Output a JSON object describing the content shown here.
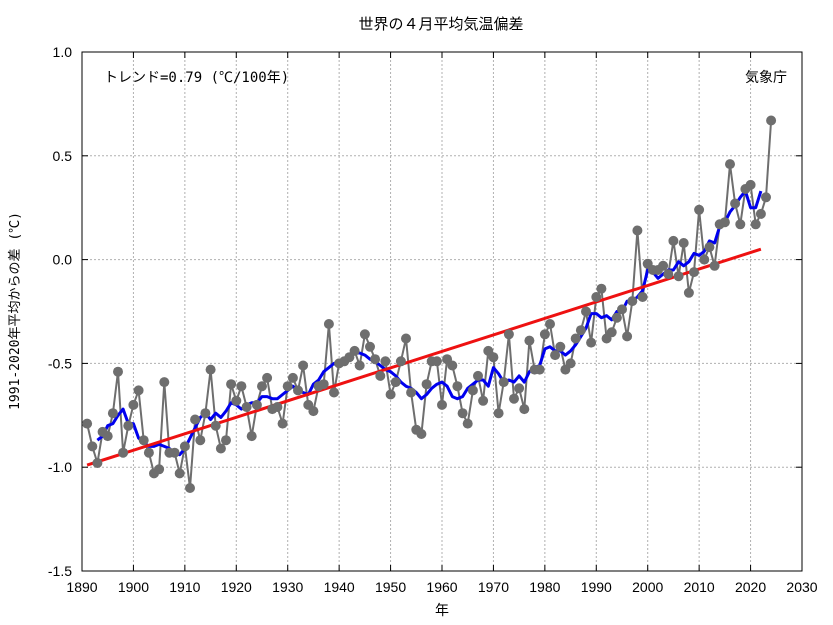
{
  "chart_data": {
    "type": "line",
    "title": "世界の４月平均気温偏差",
    "xlabel": "年",
    "ylabel": "1991-2020年平均からの差 (℃)",
    "trend_label": "トレンド=0.79 (℃/100年)",
    "source_label": "気象庁",
    "xlim": [
      1890,
      2030
    ],
    "ylim": [
      -1.5,
      1.0
    ],
    "x_ticks": [
      "1890",
      "1900",
      "1910",
      "1920",
      "1930",
      "1940",
      "1950",
      "1960",
      "1970",
      "1980",
      "1990",
      "2000",
      "2010",
      "2020",
      "2030"
    ],
    "y_ticks": [
      "1.0",
      "0.5",
      "0.0",
      "-0.5",
      "-1.0",
      "-1.5"
    ],
    "grid": true,
    "colors": {
      "annual": "#6e6e6e",
      "moving_average": "#0000ee",
      "trend": "#ee1111"
    },
    "series": [
      {
        "type": "line+markers",
        "x": [
          1891,
          1892,
          1893,
          1894,
          1895,
          1896,
          1897,
          1898,
          1899,
          1900,
          1901,
          1902,
          1903,
          1904,
          1905,
          1906,
          1907,
          1908,
          1909,
          1910,
          1911,
          1912,
          1913,
          1914,
          1915,
          1916,
          1917,
          1918,
          1919,
          1920,
          1921,
          1922,
          1923,
          1924,
          1925,
          1926,
          1927,
          1928,
          1929,
          1930,
          1931,
          1932,
          1933,
          1934,
          1935,
          1936,
          1937,
          1938,
          1939,
          1940,
          1941,
          1942,
          1943,
          1944,
          1945,
          1946,
          1947,
          1948,
          1949,
          1950,
          1951,
          1952,
          1953,
          1954,
          1955,
          1956,
          1957,
          1958,
          1959,
          1960,
          1961,
          1962,
          1963,
          1964,
          1965,
          1966,
          1967,
          1968,
          1969,
          1970,
          1971,
          1972,
          1973,
          1974,
          1975,
          1976,
          1977,
          1978,
          1979,
          1980,
          1981,
          1982,
          1983,
          1984,
          1985,
          1986,
          1987,
          1988,
          1989,
          1990,
          1991,
          1992,
          1993,
          1994,
          1995,
          1996,
          1997,
          1998,
          1999,
          2000,
          2001,
          2002,
          2003,
          2004,
          2005,
          2006,
          2007,
          2008,
          2009,
          2010,
          2011,
          2012,
          2013,
          2014,
          2015,
          2016,
          2017,
          2018,
          2019,
          2020,
          2021,
          2022,
          2023,
          2024
        ],
        "values": [
          -0.79,
          -0.9,
          -0.98,
          -0.83,
          -0.85,
          -0.74,
          -0.54,
          -0.93,
          -0.8,
          -0.7,
          -0.63,
          -0.87,
          -0.93,
          -1.03,
          -1.01,
          -0.59,
          -0.93,
          -0.93,
          -1.03,
          -0.9,
          -1.1,
          -0.77,
          -0.87,
          -0.74,
          -0.53,
          -0.8,
          -0.91,
          -0.87,
          -0.6,
          -0.68,
          -0.61,
          -0.71,
          -0.85,
          -0.7,
          -0.61,
          -0.57,
          -0.72,
          -0.71,
          -0.79,
          -0.61,
          -0.57,
          -0.63,
          -0.51,
          -0.7,
          -0.73,
          -0.61,
          -0.6,
          -0.31,
          -0.64,
          -0.5,
          -0.49,
          -0.47,
          -0.44,
          -0.51,
          -0.36,
          -0.42,
          -0.48,
          -0.56,
          -0.49,
          -0.65,
          -0.59,
          -0.49,
          -0.38,
          -0.64,
          -0.82,
          -0.84,
          -0.6,
          -0.49,
          -0.49,
          -0.7,
          -0.48,
          -0.51,
          -0.61,
          -0.74,
          -0.79,
          -0.63,
          -0.56,
          -0.68,
          -0.44,
          -0.47,
          -0.74,
          -0.59,
          -0.36,
          -0.67,
          -0.62,
          -0.72,
          -0.39,
          -0.53,
          -0.53,
          -0.36,
          -0.31,
          -0.46,
          -0.42,
          -0.53,
          -0.5,
          -0.38,
          -0.34,
          -0.25,
          -0.4,
          -0.18,
          -0.14,
          -0.38,
          -0.35,
          -0.28,
          -0.24,
          -0.37,
          -0.2,
          0.14,
          -0.18,
          -0.02,
          -0.05,
          -0.05,
          -0.03,
          -0.07,
          0.09,
          -0.08,
          0.08,
          -0.16,
          -0.06,
          0.24,
          0.0,
          0.06,
          -0.03,
          0.17,
          0.18,
          0.46,
          0.27,
          0.17,
          0.34,
          0.36,
          0.17,
          0.22,
          0.3,
          0.67
        ]
      },
      {
        "type": "line",
        "x": [
          1893,
          1894,
          1895,
          1896,
          1897,
          1898,
          1899,
          1900,
          1901,
          1902,
          1903,
          1904,
          1905,
          1906,
          1907,
          1908,
          1909,
          1910,
          1911,
          1912,
          1913,
          1914,
          1915,
          1916,
          1917,
          1918,
          1919,
          1920,
          1921,
          1922,
          1923,
          1924,
          1925,
          1926,
          1927,
          1928,
          1929,
          1930,
          1931,
          1932,
          1933,
          1934,
          1935,
          1936,
          1937,
          1938,
          1939,
          1940,
          1941,
          1942,
          1943,
          1944,
          1945,
          1946,
          1947,
          1948,
          1949,
          1950,
          1951,
          1952,
          1953,
          1954,
          1955,
          1956,
          1957,
          1958,
          1959,
          1960,
          1961,
          1962,
          1963,
          1964,
          1965,
          1966,
          1967,
          1968,
          1969,
          1970,
          1971,
          1972,
          1973,
          1974,
          1975,
          1976,
          1977,
          1978,
          1979,
          1980,
          1981,
          1982,
          1983,
          1984,
          1985,
          1986,
          1987,
          1988,
          1989,
          1990,
          1991,
          1992,
          1993,
          1994,
          1995,
          1996,
          1997,
          1998,
          1999,
          2000,
          2001,
          2002,
          2003,
          2004,
          2005,
          2006,
          2007,
          2008,
          2009,
          2010,
          2011,
          2012,
          2013,
          2014,
          2015,
          2016,
          2017,
          2018,
          2019,
          2020,
          2021,
          2022
        ],
        "values": [
          -0.87,
          -0.85,
          -0.8,
          -0.79,
          -0.75,
          -0.72,
          -0.79,
          -0.79,
          -0.86,
          -0.88,
          -0.9,
          -0.9,
          -0.89,
          -0.9,
          -0.91,
          -0.93,
          -0.94,
          -0.91,
          -0.86,
          -0.81,
          -0.76,
          -0.74,
          -0.77,
          -0.74,
          -0.76,
          -0.73,
          -0.69,
          -0.7,
          -0.72,
          -0.7,
          -0.69,
          -0.69,
          -0.66,
          -0.66,
          -0.67,
          -0.67,
          -0.65,
          -0.63,
          -0.61,
          -0.63,
          -0.64,
          -0.65,
          -0.6,
          -0.58,
          -0.54,
          -0.52,
          -0.5,
          -0.51,
          -0.49,
          -0.46,
          -0.45,
          -0.45,
          -0.46,
          -0.48,
          -0.49,
          -0.51,
          -0.53,
          -0.54,
          -0.56,
          -0.59,
          -0.61,
          -0.62,
          -0.64,
          -0.67,
          -0.65,
          -0.62,
          -0.6,
          -0.59,
          -0.61,
          -0.66,
          -0.67,
          -0.66,
          -0.62,
          -0.6,
          -0.58,
          -0.58,
          -0.61,
          -0.52,
          -0.55,
          -0.59,
          -0.58,
          -0.59,
          -0.56,
          -0.59,
          -0.54,
          -0.52,
          -0.51,
          -0.43,
          -0.42,
          -0.44,
          -0.44,
          -0.46,
          -0.44,
          -0.41,
          -0.37,
          -0.33,
          -0.26,
          -0.26,
          -0.28,
          -0.27,
          -0.29,
          -0.25,
          -0.25,
          -0.2,
          -0.2,
          -0.18,
          -0.15,
          -0.05,
          -0.06,
          -0.09,
          -0.07,
          -0.05,
          -0.05,
          -0.01,
          -0.03,
          -0.01,
          0.03,
          0.02,
          0.04,
          0.09,
          0.08,
          0.16,
          0.18,
          0.23,
          0.26,
          0.3,
          0.33,
          0.25,
          0.25,
          0.33
        ]
      },
      {
        "type": "line",
        "x": [
          1891,
          2022
        ],
        "values": [
          -0.99,
          0.05
        ]
      }
    ]
  }
}
